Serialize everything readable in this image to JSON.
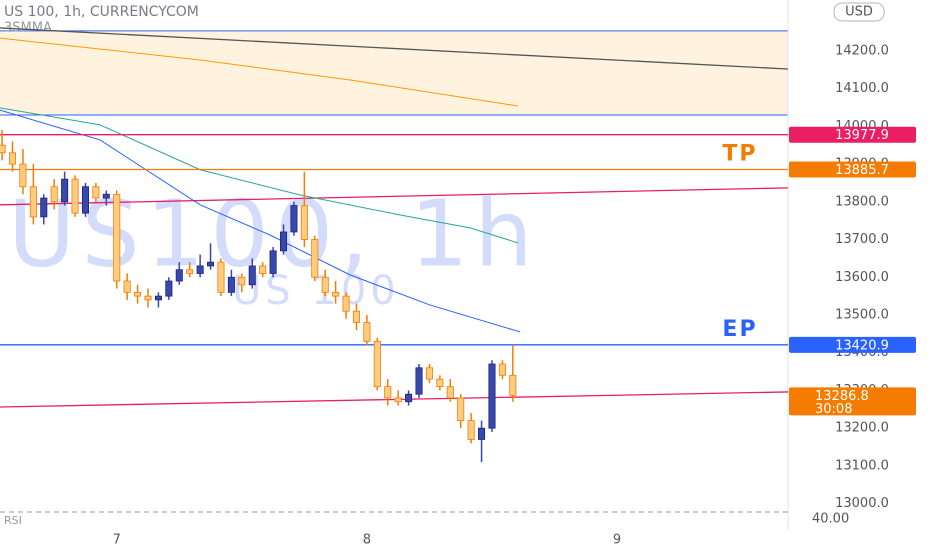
{
  "chart_data": {
    "type": "candlestick",
    "title": "US 100, 1h, CURRENCYCOM",
    "subtitle": "3SMMA",
    "watermark": "US100, 1h",
    "watermark_sub": "US 100",
    "currency": "USD",
    "x": [
      -11,
      -10,
      -9,
      -8,
      -7,
      -6,
      -5,
      -4,
      -3,
      -2,
      -1,
      0,
      1,
      2,
      3,
      4,
      5,
      6,
      7,
      8,
      9,
      10,
      11,
      12,
      13,
      14,
      15,
      16,
      17,
      18,
      19,
      20,
      21,
      22,
      23,
      24,
      25,
      26,
      27,
      28,
      29,
      30,
      31,
      32,
      33,
      34,
      35,
      36,
      37,
      38
    ],
    "open": [
      13950,
      13930,
      13900,
      13840,
      13760,
      13840,
      13800,
      13860,
      13770,
      13840,
      13810,
      13820,
      13590,
      13560,
      13550,
      13540,
      13550,
      13590,
      13620,
      13610,
      13630,
      13640,
      13560,
      13600,
      13580,
      13630,
      13610,
      13670,
      13720,
      13790,
      13700,
      13600,
      13560,
      13550,
      13510,
      13480,
      13430,
      13310,
      13280,
      13270,
      13290,
      13360,
      13330,
      13310,
      13280,
      13220,
      13170,
      13200,
      13370,
      13340
    ],
    "high": [
      13990,
      13960,
      13940,
      13900,
      13820,
      13860,
      13880,
      13870,
      13850,
      13850,
      13830,
      13830,
      13610,
      13580,
      13570,
      13560,
      13600,
      13640,
      13640,
      13660,
      13690,
      13650,
      13620,
      13610,
      13650,
      13640,
      13680,
      13740,
      13800,
      13880,
      13710,
      13620,
      13590,
      13560,
      13530,
      13500,
      13440,
      13330,
      13300,
      13300,
      13370,
      13370,
      13340,
      13330,
      13290,
      13240,
      13220,
      13380,
      13380,
      13420
    ],
    "low": [
      13910,
      13880,
      13820,
      13740,
      13740,
      13780,
      13790,
      13760,
      13760,
      13800,
      13790,
      13570,
      13540,
      13530,
      13520,
      13520,
      13540,
      13580,
      13600,
      13600,
      13620,
      13550,
      13550,
      13560,
      13570,
      13600,
      13600,
      13660,
      13710,
      13680,
      13590,
      13550,
      13530,
      13490,
      13460,
      13420,
      13300,
      13260,
      13260,
      13260,
      13280,
      13320,
      13300,
      13270,
      13200,
      13160,
      13110,
      13190,
      13330,
      13270
    ],
    "close": [
      13930,
      13900,
      13840,
      13760,
      13810,
      13800,
      13860,
      13770,
      13840,
      13810,
      13820,
      13590,
      13560,
      13550,
      13540,
      13550,
      13590,
      13620,
      13610,
      13630,
      13640,
      13560,
      13600,
      13580,
      13630,
      13610,
      13670,
      13720,
      13790,
      13700,
      13600,
      13560,
      13550,
      13510,
      13480,
      13430,
      13310,
      13280,
      13270,
      13290,
      13360,
      13330,
      13310,
      13280,
      13220,
      13170,
      13200,
      13370,
      13340,
      13286.8
    ],
    "up_color": "#3949ab",
    "down_color": "#ffcc80",
    "down_edge": "#f57c00",
    "moving_averages": [
      {
        "color": "#2962ff",
        "x": [
          -11.2,
          -1.6,
          8,
          14.7,
          22.4,
          30,
          38.7
        ],
        "values": [
          14043,
          13964,
          13792,
          13712,
          13606,
          13527,
          13455
        ]
      },
      {
        "color": "#26a69a",
        "x": [
          -11.2,
          -1.6,
          8,
          17.6,
          27.2,
          33.9,
          38.5
        ],
        "values": [
          14049,
          14004,
          13885,
          13818,
          13765,
          13731,
          13691
        ]
      },
      {
        "color": "#ff9800",
        "x": [
          -11.2,
          8,
          22.4,
          38.5
        ],
        "values": [
          14234,
          14176,
          14123,
          14054
        ]
      }
    ],
    "trendlines": [
      {
        "color": "#555555",
        "x": [
          -11.2,
          64.4
        ],
        "values": [
          14261,
          14152
        ]
      },
      {
        "color": "#e91e63",
        "x": [
          -11.2,
          64.4
        ],
        "values": [
          13792,
          13837
        ]
      },
      {
        "color": "#e91e63",
        "x": [
          -11.2,
          64.4
        ],
        "values": [
          13256,
          13296
        ]
      }
    ],
    "zone": {
      "from": 14030,
      "to": 14253,
      "color": "#fff3e0",
      "edge": "#2962ff"
    },
    "levels": [
      {
        "value": 13977.9,
        "color": "#e91e63"
      },
      {
        "value": 13885.7,
        "color": "#f57c00",
        "name": "TP"
      },
      {
        "value": 13420.9,
        "color": "#2962ff",
        "name": "EP"
      }
    ],
    "last_price": {
      "value": 13286.8,
      "countdown": "30:08",
      "color": "#f57c00"
    },
    "rsi": {
      "name": "RSI",
      "level": "40.00"
    },
    "xlim": [
      -11.2,
      64.4
    ],
    "xticks": [
      {
        "value": 0,
        "label": "7"
      },
      {
        "value": 24,
        "label": "8"
      },
      {
        "value": 48,
        "label": "9"
      }
    ],
    "ylim": [
      12983,
      14335
    ],
    "yticks": [
      {
        "value": 13000,
        "label": "13000.0"
      },
      {
        "value": 13100,
        "label": "13100.0"
      },
      {
        "value": 13200,
        "label": "13200.0"
      },
      {
        "value": 13300,
        "label": "13300.0"
      },
      {
        "value": 13400,
        "label": "13400.0"
      },
      {
        "value": 13500,
        "label": "13500.0"
      },
      {
        "value": 13600,
        "label": "13600.0"
      },
      {
        "value": 13700,
        "label": "13700.0"
      },
      {
        "value": 13800,
        "label": "13800.0"
      },
      {
        "value": 13900,
        "label": "13900.0"
      },
      {
        "value": 14000,
        "label": "14000.0"
      },
      {
        "value": 14100,
        "label": "14100.0"
      },
      {
        "value": 14200,
        "label": "14200.0"
      }
    ]
  }
}
